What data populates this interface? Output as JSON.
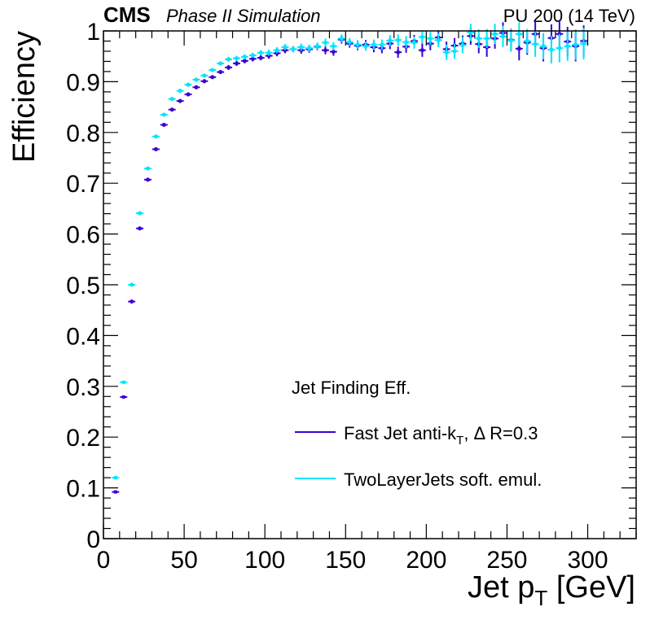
{
  "header": {
    "experiment": "CMS",
    "subtitle": "Phase II Simulation",
    "conditions": "PU 200 (14 TeV)"
  },
  "legend": {
    "header": "Jet Finding Eff.",
    "entries": [
      {
        "main": "Fast Jet anti-k",
        "sub": "T",
        "rest": ", Δ R=0.3",
        "color": "#3b00d6"
      },
      {
        "main": "TwoLayerJets soft. emul.",
        "sub": "",
        "rest": "",
        "color": "#00e5ff"
      }
    ]
  },
  "axes": {
    "ylabel": "Efficiency",
    "xlabel_main": "Jet p",
    "xlabel_sub": "T",
    "xlabel_unit": " [GeV]"
  },
  "chart_data": {
    "type": "scatter",
    "title": "",
    "xlabel": "Jet pT [GeV]",
    "ylabel": "Efficiency",
    "xlim": [
      0,
      330
    ],
    "ylim": [
      0,
      1
    ],
    "x_ticks": [
      0,
      50,
      100,
      150,
      200,
      250,
      300
    ],
    "x_tick_labels": [
      "0",
      "50",
      "100",
      "150",
      "200",
      "250",
      "300"
    ],
    "y_ticks": [
      0,
      0.1,
      0.2,
      0.3,
      0.4,
      0.5,
      0.6,
      0.7,
      0.8,
      0.9,
      1
    ],
    "y_tick_labels": [
      "0",
      "0.1",
      "0.2",
      "0.3",
      "0.4",
      "0.5",
      "0.6",
      "0.7",
      "0.8",
      "0.9",
      "1"
    ],
    "grid": false,
    "legend_position": "bottom-right",
    "bin_half_width": 2.5,
    "series": [
      {
        "name": "Fast Jet anti-kT, Δ R=0.3",
        "color": "#3b00d6",
        "x": [
          7.5,
          12.5,
          17.5,
          22.5,
          27.5,
          32.5,
          37.5,
          42.5,
          47.5,
          52.5,
          57.5,
          62.5,
          67.5,
          72.5,
          77.5,
          82.5,
          87.5,
          92.5,
          97.5,
          102.5,
          107.5,
          112.5,
          117.5,
          122.5,
          127.5,
          132.5,
          137.5,
          142.5,
          147.5,
          152.5,
          157.5,
          162.5,
          167.5,
          172.5,
          177.5,
          182.5,
          187.5,
          192.5,
          197.5,
          202.5,
          207.5,
          212.5,
          217.5,
          222.5,
          227.5,
          232.5,
          237.5,
          242.5,
          247.5,
          252.5,
          257.5,
          262.5,
          267.5,
          272.5,
          277.5,
          282.5,
          287.5,
          292.5,
          297.5
        ],
        "y": [
          0.092,
          0.279,
          0.467,
          0.611,
          0.707,
          0.767,
          0.815,
          0.845,
          0.862,
          0.875,
          0.889,
          0.901,
          0.909,
          0.919,
          0.928,
          0.936,
          0.941,
          0.945,
          0.947,
          0.951,
          0.956,
          0.962,
          0.964,
          0.962,
          0.964,
          0.969,
          0.962,
          0.959,
          0.983,
          0.975,
          0.971,
          0.973,
          0.968,
          0.966,
          0.975,
          0.958,
          0.969,
          0.98,
          0.962,
          0.975,
          0.987,
          0.964,
          0.971,
          0.975,
          0.99,
          0.974,
          0.968,
          0.985,
          0.996,
          0.982,
          0.965,
          0.977,
          0.994,
          0.966,
          0.986,
          0.994,
          0.979,
          0.97,
          0.98
        ],
        "y_err": [
          0.002,
          0.003,
          0.004,
          0.004,
          0.004,
          0.004,
          0.004,
          0.004,
          0.004,
          0.004,
          0.004,
          0.004,
          0.004,
          0.004,
          0.005,
          0.005,
          0.005,
          0.005,
          0.005,
          0.006,
          0.006,
          0.006,
          0.006,
          0.007,
          0.007,
          0.007,
          0.008,
          0.008,
          0.008,
          0.008,
          0.009,
          0.009,
          0.01,
          0.01,
          0.011,
          0.011,
          0.012,
          0.012,
          0.013,
          0.013,
          0.014,
          0.015,
          0.015,
          0.016,
          0.017,
          0.018,
          0.019,
          0.02,
          0.021,
          0.022,
          0.023,
          0.024,
          0.025,
          0.026,
          0.027,
          0.028,
          0.029,
          0.03,
          0.031
        ]
      },
      {
        "name": "TwoLayerJets soft. emul.",
        "color": "#00e5ff",
        "x": [
          7.5,
          12.5,
          17.5,
          22.5,
          27.5,
          32.5,
          37.5,
          42.5,
          47.5,
          52.5,
          57.5,
          62.5,
          67.5,
          72.5,
          77.5,
          82.5,
          87.5,
          92.5,
          97.5,
          102.5,
          107.5,
          112.5,
          117.5,
          122.5,
          127.5,
          132.5,
          137.5,
          142.5,
          147.5,
          152.5,
          157.5,
          162.5,
          167.5,
          172.5,
          177.5,
          182.5,
          187.5,
          192.5,
          197.5,
          202.5,
          207.5,
          212.5,
          217.5,
          222.5,
          227.5,
          232.5,
          237.5,
          242.5,
          247.5,
          252.5,
          257.5,
          262.5,
          267.5,
          272.5,
          277.5,
          282.5,
          287.5,
          292.5,
          297.5
        ],
        "y": [
          0.12,
          0.308,
          0.5,
          0.641,
          0.729,
          0.792,
          0.835,
          0.866,
          0.882,
          0.894,
          0.904,
          0.912,
          0.923,
          0.936,
          0.944,
          0.946,
          0.949,
          0.952,
          0.957,
          0.957,
          0.962,
          0.968,
          0.964,
          0.968,
          0.966,
          0.97,
          0.977,
          0.97,
          0.985,
          0.978,
          0.973,
          0.97,
          0.973,
          0.973,
          0.981,
          0.982,
          0.978,
          0.977,
          0.988,
          0.985,
          0.982,
          0.958,
          0.96,
          0.972,
          0.997,
          0.985,
          0.985,
          0.994,
          0.989,
          0.981,
          0.994,
          0.98,
          0.974,
          0.97,
          0.963,
          0.966,
          0.97,
          0.973,
          0.975
        ],
        "y_err": [
          0.002,
          0.003,
          0.004,
          0.004,
          0.004,
          0.004,
          0.004,
          0.004,
          0.004,
          0.004,
          0.004,
          0.004,
          0.004,
          0.004,
          0.005,
          0.005,
          0.005,
          0.005,
          0.005,
          0.006,
          0.006,
          0.006,
          0.006,
          0.007,
          0.007,
          0.007,
          0.008,
          0.008,
          0.008,
          0.008,
          0.009,
          0.009,
          0.01,
          0.01,
          0.011,
          0.011,
          0.012,
          0.012,
          0.013,
          0.013,
          0.014,
          0.015,
          0.015,
          0.016,
          0.017,
          0.018,
          0.019,
          0.02,
          0.021,
          0.022,
          0.023,
          0.024,
          0.025,
          0.026,
          0.027,
          0.028,
          0.029,
          0.03,
          0.031
        ]
      }
    ]
  }
}
